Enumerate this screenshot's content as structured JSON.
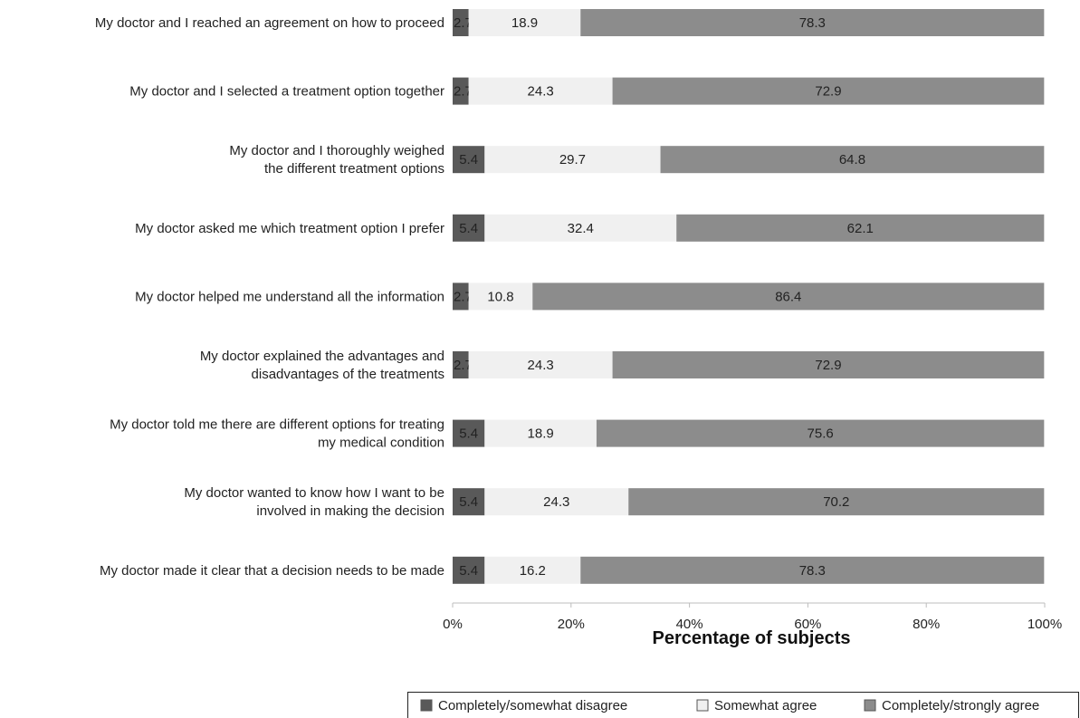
{
  "chart_data": {
    "type": "bar",
    "orientation": "horizontal",
    "stacked": true,
    "categories": [
      [
        "My doctor and I reached an agreement on how to proceed"
      ],
      [
        "My doctor and I selected a treatment option together"
      ],
      [
        "My doctor and I thoroughly weighed",
        "the different treatment options"
      ],
      [
        "My doctor asked me which treatment option I prefer"
      ],
      [
        "My doctor helped me understand all the information"
      ],
      [
        "My doctor explained the advantages and",
        "disadvantages of the treatments"
      ],
      [
        "My doctor told me there are different options for treating",
        "my medical condition"
      ],
      [
        "My doctor wanted to know how I want to be",
        "involved in making the decision"
      ],
      [
        "My doctor made it clear that a decision needs to be made"
      ]
    ],
    "series": [
      {
        "name": "Completely/somewhat disagree",
        "color": "#595959",
        "values": [
          2.7,
          2.7,
          5.4,
          5.4,
          2.7,
          2.7,
          5.4,
          5.4,
          5.4
        ],
        "labels": [
          "2.7",
          "2.7",
          "5.4",
          "5.4",
          "2.7",
          "2.7",
          "5.4",
          "5.4",
          "5.4"
        ]
      },
      {
        "name": "Somewhat agree",
        "color": "#f0f0f0",
        "values": [
          18.9,
          24.3,
          29.7,
          32.4,
          10.8,
          24.3,
          18.9,
          24.3,
          16.2
        ],
        "labels": [
          "18.9",
          "24.3",
          "29.7",
          "32.4",
          "10.8",
          "24.3",
          "18.9",
          "24.3",
          "16.2"
        ]
      },
      {
        "name": "Completely/strongly agree",
        "color": "#8c8c8c",
        "values": [
          78.3,
          72.9,
          64.8,
          62.1,
          86.4,
          72.9,
          75.6,
          70.2,
          78.3
        ],
        "labels": [
          "78.3",
          "72.9",
          "64.8",
          "62.1",
          "86.4",
          "72.9",
          "75.6",
          "70.2",
          "78.3"
        ]
      }
    ],
    "xlim": [
      0,
      100
    ],
    "xticks": [
      0,
      20,
      40,
      60,
      80,
      100
    ],
    "xtick_labels": [
      "0%",
      "20%",
      "40%",
      "60%",
      "80%",
      "100%"
    ],
    "xlabel": "Percentage of subjects",
    "ylabel": "",
    "title": "",
    "grid": false,
    "legend": {
      "position": "bottom-right",
      "entries": [
        "Completely/somewhat disagree",
        "Somewhat agree",
        "Completely/strongly agree"
      ]
    }
  }
}
